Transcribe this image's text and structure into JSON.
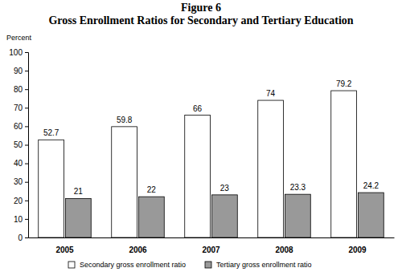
{
  "chart_data": {
    "type": "bar",
    "title": "Figure 6",
    "subtitle": "Gross Enrollment Ratios for Secondary and Tertiary Education",
    "y_label": "Percent",
    "categories": [
      "2005",
      "2006",
      "2007",
      "2008",
      "2009"
    ],
    "series": [
      {
        "name": "Secondary gross enrollment ratio",
        "color": "#ffffff",
        "values": [
          52.7,
          59.8,
          66,
          74,
          79.2
        ]
      },
      {
        "name": "Tertiary gross enrollment ratio",
        "color": "#999999",
        "values": [
          21,
          22,
          23,
          23.3,
          24.2
        ]
      }
    ],
    "ylim": [
      0,
      100
    ],
    "yticks": [
      0,
      10,
      20,
      30,
      40,
      50,
      60,
      70,
      80,
      90,
      100
    ],
    "grid": false,
    "legend": "bottom",
    "data_labels": true
  }
}
